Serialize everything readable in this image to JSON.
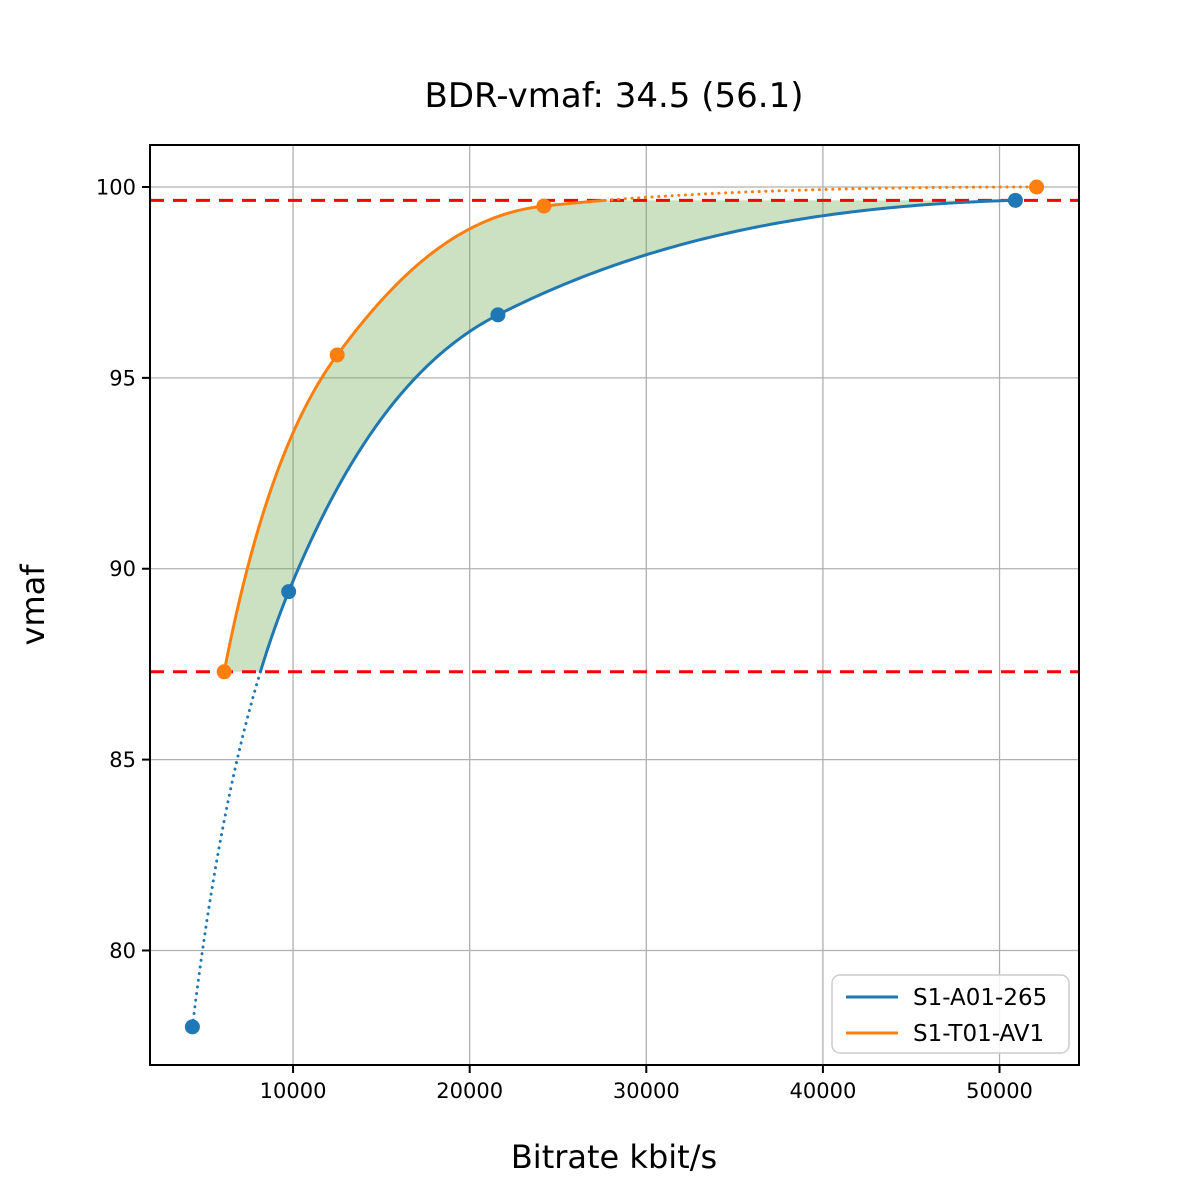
{
  "chart_data": {
    "type": "line",
    "title": "BDR-vmaf: 34.5 (56.1)",
    "xlabel": "Bitrate kbit/s",
    "ylabel": "vmaf",
    "xlim": [
      1900,
      54500
    ],
    "ylim": [
      77.0,
      101.1
    ],
    "x_ticks": [
      10000,
      20000,
      30000,
      40000,
      50000
    ],
    "y_ticks": [
      80,
      85,
      90,
      95,
      100
    ],
    "grid": true,
    "grid_color": "#b0b0b0",
    "spine_color": "#000000",
    "legend_position": "lower right",
    "series": [
      {
        "name": "S1-A01-265",
        "color": "#1f77b4",
        "marker": "circle",
        "x": [
          4300,
          9750,
          21600,
          50900
        ],
        "y": [
          78.0,
          89.4,
          96.65,
          99.65
        ]
      },
      {
        "name": "S1-T01-AV1",
        "color": "#ff7f0e",
        "marker": "circle",
        "x": [
          6100,
          12500,
          24200,
          52100
        ],
        "y": [
          87.3,
          95.6,
          99.5,
          100.0
        ]
      }
    ],
    "overlap_lines": {
      "comment_style": "dashed horizontal reference lines marking BD overlap interval",
      "color": "#ff0000",
      "low": 87.3,
      "high": 99.65
    },
    "fill_between": {
      "color": "#6aa84f",
      "opacity": 0.35
    }
  }
}
